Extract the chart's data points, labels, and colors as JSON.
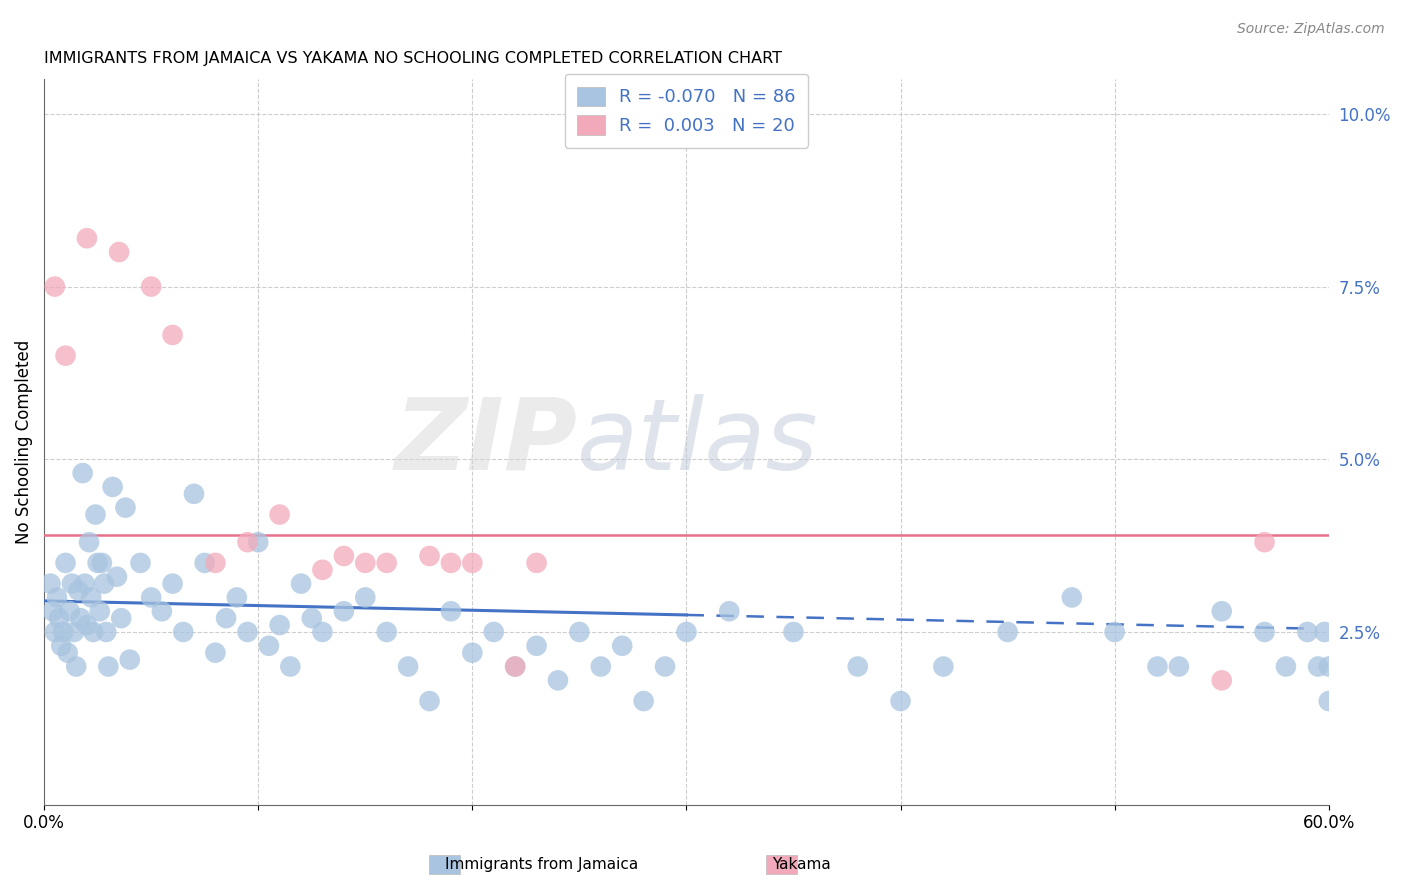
{
  "title": "IMMIGRANTS FROM JAMAICA VS YAKAMA NO SCHOOLING COMPLETED CORRELATION CHART",
  "source": "Source: ZipAtlas.com",
  "ylabel": "No Schooling Completed",
  "watermark_zip": "ZIP",
  "watermark_atlas": "atlas",
  "legend_jamaica": "Immigrants from Jamaica",
  "legend_yakama": "Yakama",
  "r_jamaica": "-0.070",
  "n_jamaica": "86",
  "r_yakama": "0.003",
  "n_yakama": "20",
  "color_jamaica": "#a8c4e0",
  "color_yakama": "#f2aaba",
  "trendline_jamaica_color": "#4472c4",
  "trendline_yakama_color": "#e8708a",
  "background_color": "#ffffff",
  "grid_color": "#c8c8c8",
  "jamaica_x": [
    0.3,
    0.4,
    0.5,
    0.6,
    0.7,
    0.8,
    0.9,
    1.0,
    1.1,
    1.2,
    1.3,
    1.4,
    1.5,
    1.6,
    1.7,
    1.8,
    1.9,
    2.0,
    2.1,
    2.2,
    2.3,
    2.4,
    2.5,
    2.6,
    2.7,
    2.8,
    2.9,
    3.0,
    3.2,
    3.4,
    3.6,
    3.8,
    4.0,
    4.5,
    5.0,
    5.5,
    6.0,
    6.5,
    7.0,
    7.5,
    8.0,
    8.5,
    9.0,
    9.5,
    10.0,
    10.5,
    11.0,
    11.5,
    12.0,
    12.5,
    13.0,
    14.0,
    15.0,
    16.0,
    17.0,
    18.0,
    19.0,
    20.0,
    21.0,
    22.0,
    23.0,
    24.0,
    25.0,
    26.0,
    27.0,
    28.0,
    29.0,
    30.0,
    32.0,
    35.0,
    38.0,
    40.0,
    42.0,
    45.0,
    48.0,
    50.0,
    52.0,
    53.0,
    55.0,
    57.0,
    58.0,
    59.0,
    59.5,
    59.8,
    60.0,
    60.0
  ],
  "jamaica_y": [
    3.2,
    2.8,
    2.5,
    3.0,
    2.7,
    2.3,
    2.5,
    3.5,
    2.2,
    2.8,
    3.2,
    2.5,
    2.0,
    3.1,
    2.7,
    4.8,
    3.2,
    2.6,
    3.8,
    3.0,
    2.5,
    4.2,
    3.5,
    2.8,
    3.5,
    3.2,
    2.5,
    2.0,
    4.6,
    3.3,
    2.7,
    4.3,
    2.1,
    3.5,
    3.0,
    2.8,
    3.2,
    2.5,
    4.5,
    3.5,
    2.2,
    2.7,
    3.0,
    2.5,
    3.8,
    2.3,
    2.6,
    2.0,
    3.2,
    2.7,
    2.5,
    2.8,
    3.0,
    2.5,
    2.0,
    1.5,
    2.8,
    2.2,
    2.5,
    2.0,
    2.3,
    1.8,
    2.5,
    2.0,
    2.3,
    1.5,
    2.0,
    2.5,
    2.8,
    2.5,
    2.0,
    1.5,
    2.0,
    2.5,
    3.0,
    2.5,
    2.0,
    2.0,
    2.8,
    2.5,
    2.0,
    2.5,
    2.0,
    2.5,
    2.0,
    1.5
  ],
  "yakama_x": [
    0.5,
    1.0,
    2.0,
    3.5,
    5.0,
    6.0,
    8.0,
    9.5,
    11.0,
    13.0,
    14.0,
    15.0,
    16.0,
    18.0,
    19.0,
    20.0,
    22.0,
    23.0,
    55.0,
    57.0
  ],
  "yakama_y": [
    7.5,
    6.5,
    8.2,
    8.0,
    7.5,
    6.8,
    3.5,
    3.8,
    4.2,
    3.4,
    3.6,
    3.5,
    3.5,
    3.6,
    3.5,
    3.5,
    2.0,
    3.5,
    1.8,
    3.8
  ],
  "xmin": 0.0,
  "xmax": 60.0,
  "ymin": 0.0,
  "ymax": 10.5,
  "ytick_vals": [
    2.5,
    5.0,
    7.5,
    10.0
  ],
  "xtick_vals": [
    0.0,
    60.0
  ],
  "jamaica_trendline_x0": 0.0,
  "jamaica_trendline_y0": 2.95,
  "jamaica_trendline_x1": 59.0,
  "jamaica_trendline_y1": 2.55,
  "jamaica_solid_end": 59.0,
  "yakama_trendline_y": 3.9
}
